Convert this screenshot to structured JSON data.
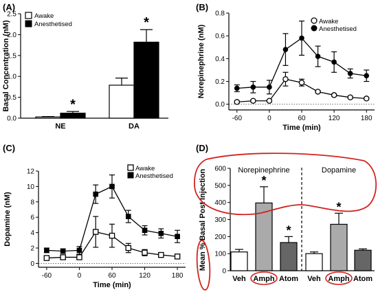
{
  "chart_data": [
    {
      "id": "A",
      "panel_label": "(A)",
      "type": "bar",
      "ylabel": "Basal Concentration (nM)",
      "ylim": [
        0,
        2.5
      ],
      "yticks": [
        "0.0",
        "0.5",
        "1.0",
        "1.5",
        "2.0",
        "2.5"
      ],
      "categories": [
        "NE",
        "DA"
      ],
      "legend": {
        "position": "top-left",
        "entries": [
          "Awake",
          "Anesthetised"
        ]
      },
      "series": [
        {
          "name": "Awake",
          "color": "#ffffff",
          "values": [
            0.03,
            0.79
          ],
          "errors": [
            0.01,
            0.17
          ]
        },
        {
          "name": "Anesthetised",
          "color": "#000000",
          "values": [
            0.12,
            1.82
          ],
          "errors": [
            0.04,
            0.3
          ]
        }
      ],
      "annotations": [
        {
          "text": "*",
          "category": "NE",
          "series": "Anesthetised"
        },
        {
          "text": "*",
          "category": "DA",
          "series": "Anesthetised"
        }
      ]
    },
    {
      "id": "B",
      "panel_label": "(B)",
      "type": "line",
      "xlabel": "Time (min)",
      "ylabel": "Norepinephrine (nM)",
      "xlim": [
        -75,
        195
      ],
      "ylim": [
        -0.05,
        0.8
      ],
      "xticks": [
        "-60",
        "0",
        "60",
        "120",
        "180"
      ],
      "yticks": [
        "0.0",
        "0.2",
        "0.4",
        "0.6",
        "0.8"
      ],
      "legend": {
        "position": "top-right",
        "entries": [
          "Awake",
          "Anesthetised"
        ]
      },
      "x": [
        -60,
        -30,
        0,
        30,
        60,
        90,
        120,
        150,
        180
      ],
      "series": [
        {
          "name": "Awake",
          "marker": "open-circle",
          "values": [
            0.02,
            0.03,
            0.03,
            0.22,
            0.19,
            0.11,
            0.08,
            0.06,
            0.05
          ],
          "errors": [
            0.01,
            0.01,
            0.01,
            0.06,
            0.03,
            0.01,
            0.01,
            0.01,
            0.01
          ]
        },
        {
          "name": "Anesthetised",
          "marker": "filled-circle",
          "values": [
            0.14,
            0.15,
            0.15,
            0.48,
            0.58,
            0.42,
            0.37,
            0.27,
            0.25
          ],
          "errors": [
            0.03,
            0.05,
            0.06,
            0.14,
            0.15,
            0.09,
            0.09,
            0.04,
            0.05
          ]
        }
      ]
    },
    {
      "id": "C",
      "panel_label": "(C)",
      "type": "line",
      "xlabel": "Time (min)",
      "ylabel": "Dopamine (nM)",
      "xlim": [
        -75,
        195
      ],
      "ylim": [
        -0.5,
        12
      ],
      "xticks": [
        "-60",
        "0",
        "60",
        "120",
        "180"
      ],
      "yticks": [
        "0",
        "2",
        "4",
        "6",
        "8",
        "10",
        "12"
      ],
      "legend": {
        "position": "top-right",
        "entries": [
          "Awake",
          "Anesthetised"
        ]
      },
      "x": [
        -60,
        -30,
        0,
        30,
        60,
        90,
        120,
        150,
        180
      ],
      "series": [
        {
          "name": "Awake",
          "marker": "open-square",
          "values": [
            0.7,
            0.8,
            0.8,
            4.1,
            3.6,
            2.0,
            1.4,
            1.1,
            0.9
          ],
          "errors": [
            0.2,
            0.2,
            0.2,
            2.0,
            1.5,
            0.6,
            0.4,
            0.3,
            0.2
          ]
        },
        {
          "name": "Anesthetised",
          "marker": "filled-square",
          "values": [
            1.7,
            1.6,
            1.7,
            9.0,
            10.0,
            6.1,
            4.3,
            3.9,
            3.5
          ],
          "errors": [
            0.3,
            0.3,
            0.5,
            1.2,
            1.5,
            0.8,
            0.6,
            0.6,
            0.8
          ]
        }
      ]
    },
    {
      "id": "D",
      "panel_label": "(D)",
      "type": "bar",
      "ylabel": "Mean % Basal Post Injection",
      "ylim": [
        0,
        600
      ],
      "yticks": [
        "0",
        "100",
        "200",
        "300",
        "400",
        "500",
        "600"
      ],
      "groups": [
        "Norepinephrine",
        "Dopamine"
      ],
      "categories": [
        "Veh",
        "Amph",
        "Atom",
        "Veh",
        "Amph",
        "Atom"
      ],
      "values": [
        110,
        397,
        165,
        100,
        272,
        120
      ],
      "errors": [
        15,
        95,
        35,
        10,
        65,
        8
      ],
      "colors": [
        "#ffffff",
        "#aaaaaa",
        "#666666",
        "#ffffff",
        "#aaaaaa",
        "#666666"
      ],
      "annotations": [
        {
          "text": "*",
          "index": 1
        },
        {
          "text": "*",
          "index": 2
        },
        {
          "text": "*",
          "index": 4
        }
      ]
    }
  ]
}
